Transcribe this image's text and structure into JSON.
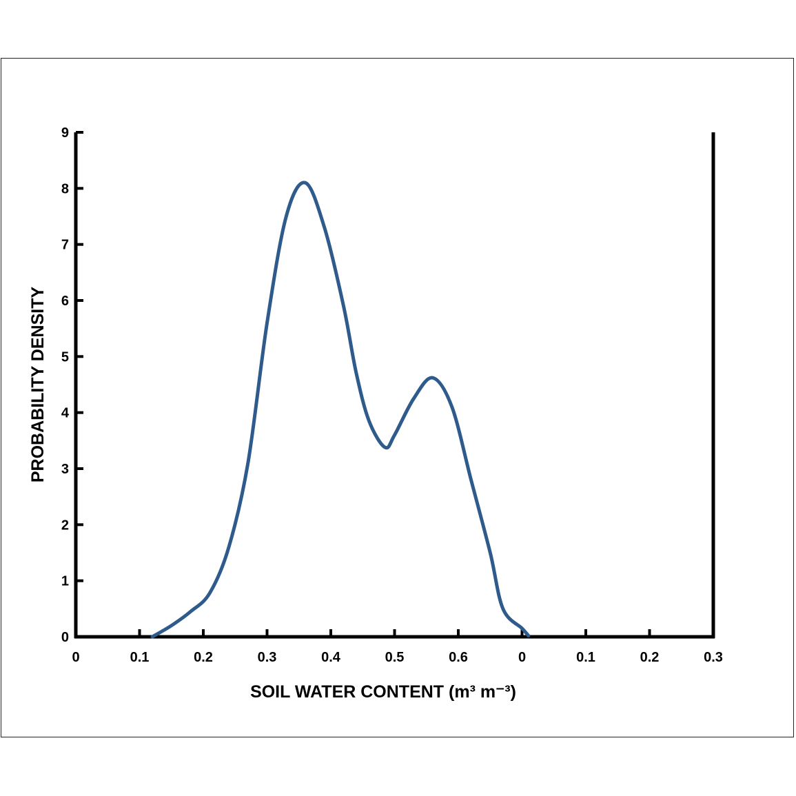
{
  "chart_data": {
    "type": "line",
    "title": "",
    "xlabel": "SOIL WATER CONTENT (m³ m⁻³)",
    "ylabel": "PROBABILITY DENSITY",
    "x_tick_labels": [
      "0",
      "0.1",
      "0.2",
      "0.3",
      "0.4",
      "0.5",
      "0.6",
      "0",
      "0.1",
      "0.2",
      "0.3"
    ],
    "y_ticks": [
      0,
      1,
      2,
      3,
      4,
      5,
      6,
      7,
      8,
      9
    ],
    "ylim": [
      0,
      9
    ],
    "grid": false,
    "legend": "none",
    "series": [
      {
        "color": "#2e5b8c",
        "points": [
          [
            0.12,
            0.0
          ],
          [
            0.15,
            0.2
          ],
          [
            0.18,
            0.45
          ],
          [
            0.21,
            0.78
          ],
          [
            0.24,
            1.6
          ],
          [
            0.27,
            3.1
          ],
          [
            0.3,
            5.6
          ],
          [
            0.33,
            7.5
          ],
          [
            0.36,
            8.1
          ],
          [
            0.39,
            7.3
          ],
          [
            0.42,
            5.9
          ],
          [
            0.44,
            4.7
          ],
          [
            0.46,
            3.85
          ],
          [
            0.485,
            3.38
          ],
          [
            0.5,
            3.6
          ],
          [
            0.53,
            4.25
          ],
          [
            0.56,
            4.62
          ],
          [
            0.59,
            4.1
          ],
          [
            0.62,
            2.8
          ],
          [
            0.65,
            1.5
          ],
          [
            0.67,
            0.5
          ],
          [
            0.7,
            0.15
          ],
          [
            0.71,
            0.02
          ]
        ]
      }
    ]
  }
}
